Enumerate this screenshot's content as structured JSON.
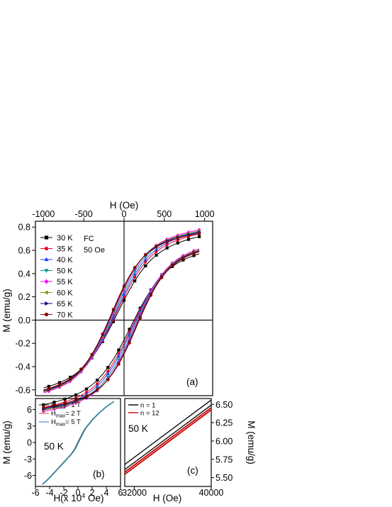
{
  "chart_data": [
    {
      "panel": "a",
      "type": "line",
      "top_axis": {
        "label": "H (Oe)",
        "range": [
          -1100,
          1100
        ],
        "ticks": [
          -1000,
          -500,
          0,
          500,
          1000
        ],
        "tick_labels": [
          "-1000",
          "-500",
          "0",
          "500",
          "1000"
        ]
      },
      "left_axis": {
        "label": "M (emu/g)",
        "range": [
          -0.65,
          0.85
        ],
        "ticks": [
          -0.6,
          -0.4,
          -0.2,
          0.0,
          0.2,
          0.4,
          0.6,
          0.8
        ],
        "tick_labels": [
          "-0.6",
          "-0.4",
          "-0.2",
          "0.0",
          "0.2",
          "0.4",
          "0.6",
          "0.8"
        ]
      },
      "annotation": {
        "line1": "FC",
        "line2": "50 Oe"
      },
      "panel_label": "(a)",
      "legend_position": "top-left",
      "series": [
        {
          "name": "30 K",
          "color": "#000000",
          "marker": "square",
          "Ms": 0.57,
          "Hc": 170,
          "w": 430,
          "Mr": 0.112
        },
        {
          "name": "35 K",
          "color": "#e8001c",
          "marker": "circle",
          "Ms": 0.59,
          "Hc": 200,
          "w": 420,
          "Mr": 0.132
        },
        {
          "name": "40 K",
          "color": "#1f3fff",
          "marker": "triangle-up",
          "Ms": 0.6,
          "Hc": 225,
          "w": 410,
          "Mr": 0.15
        },
        {
          "name": "50 K",
          "color": "#0a8f8f",
          "marker": "triangle-down",
          "Ms": 0.61,
          "Hc": 255,
          "w": 400,
          "Mr": 0.17
        },
        {
          "name": "55 K",
          "color": "#ff00ff",
          "marker": "diamond",
          "Ms": 0.62,
          "Hc": 280,
          "w": 395,
          "Mr": 0.188
        },
        {
          "name": "60 K",
          "color": "#8f8f00",
          "marker": "triangle-left",
          "Ms": 0.61,
          "Hc": 300,
          "w": 390,
          "Mr": 0.2
        },
        {
          "name": "65 K",
          "color": "#000080",
          "marker": "triangle-right",
          "Ms": 0.6,
          "Hc": 315,
          "w": 385,
          "Mr": 0.205
        },
        {
          "name": "70 K",
          "color": "#8b0000",
          "marker": "hexagon",
          "Ms": 0.59,
          "Hc": 330,
          "w": 380,
          "Mr": 0.215
        }
      ]
    },
    {
      "panel": "b",
      "type": "line",
      "x_axis": {
        "label_main": "H(x 10",
        "label_sup": "4",
        "label_end": " Oe)",
        "range": [
          -6,
          6
        ],
        "ticks": [
          -6,
          -4,
          -2,
          0,
          2,
          4,
          6
        ],
        "tick_labels": [
          "-6",
          "-4",
          "-2",
          "0",
          "2",
          "4",
          "6"
        ]
      },
      "y_axis": {
        "label": "M (emu/g)",
        "range": [
          -8,
          8
        ],
        "ticks": [
          -6,
          -3,
          0,
          3,
          6
        ],
        "tick_labels": [
          "-6",
          "-3",
          "0",
          "3",
          "6"
        ]
      },
      "annotation": "50 K",
      "panel_label": "(b)",
      "legend_position": "top-left",
      "series": [
        {
          "name_main": "H",
          "name_sub": "max",
          "name_end": "= 1 T",
          "color": "#303030"
        },
        {
          "name_main": "H",
          "name_sub": "max",
          "name_end": "= 2 T",
          "color": "#e05070"
        },
        {
          "name_main": "H",
          "name_sub": "max",
          "name_end": "= 5 T",
          "color": "#5070e0"
        }
      ],
      "curve": {
        "x": [
          -5,
          -4,
          -3,
          -2,
          -1,
          -0.5,
          0,
          0.5,
          1,
          2,
          3,
          4,
          5
        ],
        "y": [
          -7.6,
          -6.4,
          -5.0,
          -3.6,
          -2.2,
          -1.3,
          0,
          1.3,
          2.5,
          4.1,
          5.4,
          6.5,
          7.4
        ]
      }
    },
    {
      "panel": "c",
      "type": "line",
      "x_axis": {
        "label": "H (Oe)",
        "range": [
          31000,
          40000
        ],
        "ticks": [
          32000,
          40000
        ],
        "tick_labels": [
          "32000",
          "40000"
        ]
      },
      "y_axis": {
        "label": "M (emu/g)",
        "position": "right",
        "range": [
          5.38,
          6.58
        ],
        "ticks": [
          5.5,
          5.75,
          6.0,
          6.25,
          6.5
        ],
        "tick_labels": [
          "5.50",
          "5.75",
          "6.00",
          "6.25",
          "6.50"
        ]
      },
      "annotation": "50 K",
      "panel_label": "(c)",
      "legend_position": "top-left",
      "series": [
        {
          "name": "n = 1",
          "color": "#000000",
          "lines": [
            {
              "x": [
                31000,
                40000
              ],
              "y": [
                5.68,
                6.56
              ]
            },
            {
              "x": [
                31000,
                40000
              ],
              "y": [
                5.61,
                6.49
              ]
            }
          ]
        },
        {
          "name": "n = 12",
          "color": "#cc0000",
          "lines": [
            {
              "x": [
                31000,
                40000
              ],
              "y": [
                5.575,
                6.455
              ]
            },
            {
              "x": [
                31000,
                40000
              ],
              "y": [
                5.545,
                6.425
              ]
            }
          ]
        }
      ]
    }
  ]
}
